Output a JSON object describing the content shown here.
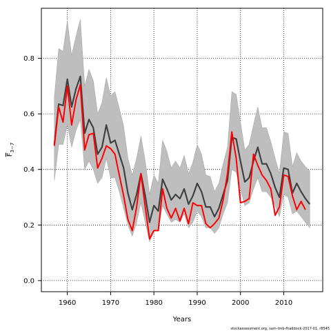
{
  "chart_data": {
    "type": "line",
    "xlabel": "Years",
    "ylabel_main": "F",
    "ylabel_sub": "3−7",
    "xlim": [
      1954,
      2019
    ],
    "ylim": [
      -0.04,
      0.98
    ],
    "x_ticks": [
      1960,
      1970,
      1980,
      1990,
      2000,
      2010
    ],
    "y_ticks": [
      0.0,
      0.2,
      0.4,
      0.6,
      0.8
    ],
    "y_tick_labels": [
      "0.0",
      "0.2",
      "0.4",
      "0.6",
      "0.8"
    ],
    "grid": true,
    "source_note": "stockassessment.org, sam-tmb-fhaddock-2017-01, r8545",
    "colors": {
      "estimate": "#404040",
      "band": "#bebebe",
      "band_edge": "#a8a8a8",
      "observed": "#ff0000"
    },
    "series": [
      {
        "role": "estimate",
        "x": [
          1957,
          1958,
          1959,
          1960,
          1961,
          1962,
          1963,
          1964,
          1965,
          1966,
          1967,
          1968,
          1969,
          1970,
          1971,
          1972,
          1973,
          1974,
          1975,
          1976,
          1977,
          1978,
          1979,
          1980,
          1981,
          1982,
          1983,
          1984,
          1985,
          1986,
          1987,
          1988,
          1989,
          1990,
          1991,
          1992,
          1993,
          1994,
          1995,
          1996,
          1997,
          1998,
          1999,
          2000,
          2001,
          2002,
          2003,
          2004,
          2005,
          2006,
          2007,
          2008,
          2009,
          2010,
          2011,
          2012,
          2013,
          2014,
          2015,
          2016
        ],
        "y": [
          0.49,
          0.635,
          0.63,
          0.725,
          0.625,
          0.69,
          0.735,
          0.53,
          0.58,
          0.55,
          0.455,
          0.48,
          0.56,
          0.495,
          0.505,
          0.455,
          0.405,
          0.315,
          0.255,
          0.31,
          0.385,
          0.305,
          0.21,
          0.27,
          0.25,
          0.365,
          0.33,
          0.29,
          0.31,
          0.295,
          0.33,
          0.275,
          0.305,
          0.35,
          0.32,
          0.265,
          0.265,
          0.23,
          0.26,
          0.31,
          0.36,
          0.515,
          0.51,
          0.43,
          0.355,
          0.37,
          0.43,
          0.48,
          0.42,
          0.42,
          0.385,
          0.335,
          0.3,
          0.405,
          0.4,
          0.315,
          0.35,
          0.32,
          0.295,
          0.275
        ],
        "lower": [
          0.36,
          0.49,
          0.49,
          0.56,
          0.48,
          0.54,
          0.58,
          0.4,
          0.43,
          0.4,
          0.35,
          0.37,
          0.44,
          0.37,
          0.37,
          0.32,
          0.26,
          0.2,
          0.16,
          0.21,
          0.28,
          0.21,
          0.14,
          0.18,
          0.18,
          0.27,
          0.24,
          0.21,
          0.22,
          0.21,
          0.24,
          0.19,
          0.21,
          0.25,
          0.23,
          0.19,
          0.19,
          0.17,
          0.19,
          0.24,
          0.28,
          0.4,
          0.39,
          0.33,
          0.27,
          0.28,
          0.33,
          0.37,
          0.32,
          0.32,
          0.3,
          0.27,
          0.23,
          0.31,
          0.3,
          0.24,
          0.25,
          0.23,
          0.21,
          0.19
        ],
        "upper": [
          0.66,
          0.835,
          0.825,
          0.935,
          0.81,
          0.88,
          0.94,
          0.7,
          0.76,
          0.72,
          0.6,
          0.64,
          0.73,
          0.665,
          0.68,
          0.62,
          0.555,
          0.44,
          0.38,
          0.44,
          0.52,
          0.43,
          0.31,
          0.38,
          0.35,
          0.505,
          0.465,
          0.405,
          0.43,
          0.405,
          0.45,
          0.385,
          0.425,
          0.49,
          0.455,
          0.38,
          0.375,
          0.32,
          0.35,
          0.42,
          0.48,
          0.68,
          0.67,
          0.57,
          0.47,
          0.49,
          0.56,
          0.625,
          0.55,
          0.55,
          0.5,
          0.44,
          0.385,
          0.535,
          0.53,
          0.41,
          0.46,
          0.43,
          0.41,
          0.395
        ]
      },
      {
        "role": "observed",
        "x": [
          1957,
          1958,
          1959,
          1960,
          1961,
          1962,
          1963,
          1964,
          1965,
          1966,
          1967,
          1968,
          1969,
          1970,
          1971,
          1972,
          1973,
          1974,
          1975,
          1976,
          1977,
          1978,
          1979,
          1980,
          1981,
          1982,
          1983,
          1984,
          1985,
          1986,
          1987,
          1988,
          1989,
          1990,
          1991,
          1992,
          1993,
          1994,
          1995,
          1996,
          1997,
          1998,
          1999,
          2000,
          2001,
          2002,
          2003,
          2004,
          2005,
          2006,
          2007,
          2008,
          2009,
          2010,
          2011,
          2012,
          2013,
          2014,
          2015
        ],
        "y": [
          0.485,
          0.625,
          0.57,
          0.7,
          0.56,
          0.65,
          0.705,
          0.47,
          0.525,
          0.53,
          0.405,
          0.44,
          0.485,
          0.475,
          0.455,
          0.38,
          0.305,
          0.22,
          0.18,
          0.265,
          0.385,
          0.265,
          0.15,
          0.18,
          0.18,
          0.33,
          0.26,
          0.225,
          0.26,
          0.215,
          0.26,
          0.205,
          0.28,
          0.27,
          0.27,
          0.205,
          0.19,
          0.205,
          0.225,
          0.29,
          0.385,
          0.535,
          0.44,
          0.28,
          0.285,
          0.295,
          0.455,
          0.415,
          0.38,
          0.36,
          0.33,
          0.235,
          0.265,
          0.38,
          0.375,
          0.305,
          0.255,
          0.285,
          0.255
        ]
      }
    ]
  }
}
